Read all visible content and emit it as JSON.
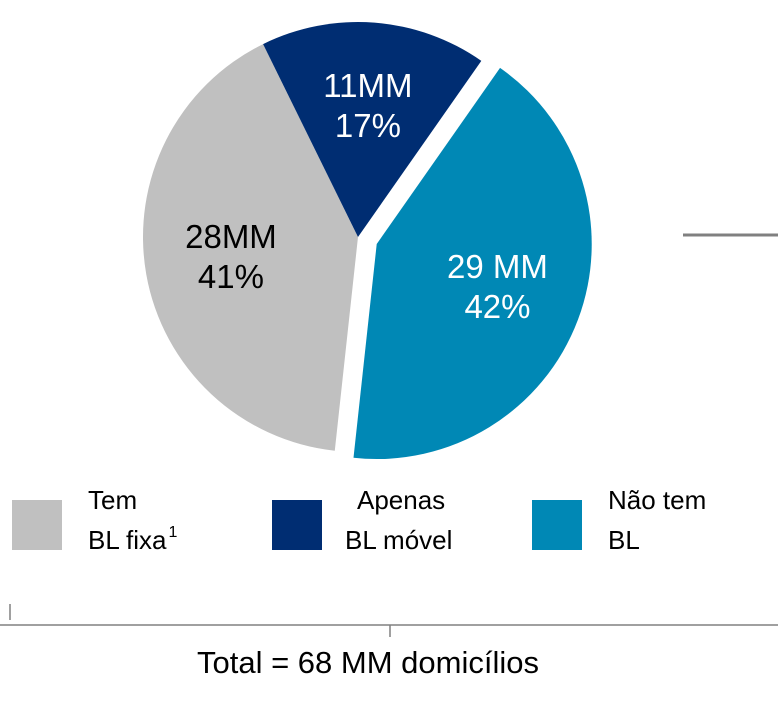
{
  "chart_data": {
    "type": "pie",
    "categories": [
      [
        "Tem",
        "BL fixa"
      ],
      [
        "Apenas",
        "BL móvel"
      ],
      [
        "Não tem",
        "BL"
      ]
    ],
    "footnote_mark": "1",
    "values": [
      41,
      17,
      42
    ],
    "value_labels": [
      "41%",
      "17%",
      "42%"
    ],
    "amount_labels": [
      "28MM",
      "11MM",
      "29 MM"
    ],
    "colors": [
      "#c0c0c0",
      "#002d72",
      "#0088b5"
    ],
    "label_colors": [
      "#000000",
      "#ffffff",
      "#ffffff"
    ],
    "exploded": [
      false,
      false,
      true
    ],
    "total": "Total = 68 MM domicílios"
  }
}
